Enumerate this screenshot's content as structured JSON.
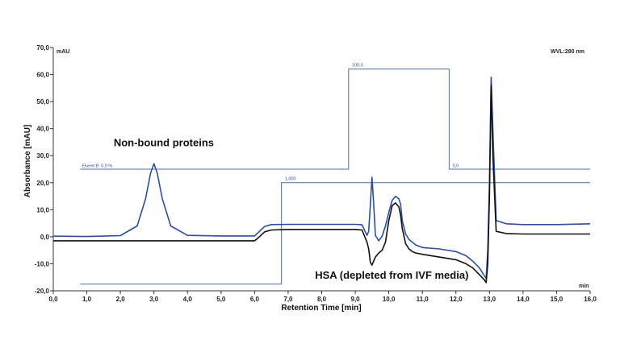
{
  "chart_data": {
    "type": "line",
    "xlabel": "Retention Time [min]",
    "ylabel": "Absorbance [mAU]",
    "x_unit": "min",
    "y_unit": "mAU",
    "wavelength_label": "WVL:280 nm",
    "xlim": [
      0,
      16
    ],
    "ylim": [
      -20,
      70
    ],
    "x_ticks": [
      "0,0",
      "1,0",
      "2,0",
      "3,0",
      "4,0",
      "5,0",
      "6,0",
      "7,0",
      "8,0",
      "9,0",
      "10,0",
      "11,0",
      "12,0",
      "13,0",
      "14,0",
      "15,0",
      "16,0"
    ],
    "x_tick_values": [
      0,
      1,
      2,
      3,
      4,
      5,
      6,
      7,
      8,
      9,
      10,
      11,
      12,
      13,
      14,
      15,
      16
    ],
    "y_ticks": [
      "-20,0",
      "-10,0",
      "0,0",
      "10,0",
      "20,0",
      "30,0",
      "40,0",
      "50,0",
      "60,0",
      "70,0"
    ],
    "y_tick_values": [
      -20,
      -10,
      0,
      10,
      20,
      30,
      40,
      50,
      60,
      70
    ],
    "colors": {
      "blue": "#2a4f9c",
      "black": "#111111",
      "program": "#4a6fa8"
    },
    "series": [
      {
        "color": "blue",
        "x": [
          0.0,
          1.0,
          2.0,
          2.5,
          2.75,
          2.9,
          3.0,
          3.1,
          3.25,
          3.5,
          4.0,
          5.0,
          5.8,
          6.0,
          6.1,
          6.3,
          6.5,
          7.0,
          8.0,
          9.0,
          9.2,
          9.35,
          9.4,
          9.45,
          9.5,
          9.55,
          9.6,
          9.7,
          9.8,
          9.9,
          10.0,
          10.1,
          10.2,
          10.3,
          10.35,
          10.4,
          10.5,
          10.6,
          10.7,
          10.8,
          11.0,
          11.5,
          12.0,
          12.3,
          12.5,
          12.7,
          12.85,
          12.9,
          12.95,
          13.0,
          13.05,
          13.1,
          13.2,
          13.5,
          14.0,
          15.0,
          16.0
        ],
        "y": [
          0.2,
          0.1,
          0.4,
          4.0,
          14.0,
          23.5,
          27.0,
          23.5,
          14.0,
          4.0,
          0.5,
          0.3,
          0.3,
          0.3,
          1.5,
          3.8,
          4.5,
          4.6,
          4.6,
          4.6,
          4.4,
          0.5,
          2.0,
          12.0,
          22.0,
          12.0,
          0.5,
          -1.5,
          0.2,
          4.0,
          9.0,
          13.5,
          15.0,
          14.0,
          12.0,
          6.0,
          1.0,
          -1.0,
          -2.0,
          -3.0,
          -4.0,
          -4.5,
          -5.5,
          -7.0,
          -9.0,
          -11.5,
          -14.5,
          -15.5,
          -5.0,
          20.0,
          59.0,
          40.0,
          6.0,
          4.8,
          4.5,
          4.5,
          4.8
        ]
      },
      {
        "color": "black",
        "x": [
          0.0,
          1.0,
          2.0,
          3.0,
          4.0,
          5.0,
          5.8,
          6.0,
          6.1,
          6.3,
          6.5,
          7.0,
          8.0,
          9.0,
          9.2,
          9.35,
          9.4,
          9.45,
          9.5,
          9.55,
          9.6,
          9.7,
          9.8,
          9.9,
          10.0,
          10.1,
          10.2,
          10.3,
          10.35,
          10.4,
          10.5,
          10.6,
          10.7,
          10.8,
          11.0,
          11.5,
          12.0,
          12.3,
          12.5,
          12.7,
          12.85,
          12.9,
          12.95,
          13.0,
          13.05,
          13.1,
          13.2,
          13.5,
          14.0,
          15.0,
          16.0
        ],
        "y": [
          -1.5,
          -1.5,
          -1.5,
          -1.5,
          -1.5,
          -1.5,
          -1.5,
          -1.5,
          -0.5,
          1.8,
          2.5,
          2.7,
          2.7,
          2.7,
          2.5,
          -2.0,
          -4.5,
          -9.5,
          -10.5,
          -9.0,
          -7.5,
          -6.0,
          -5.0,
          -2.0,
          6.0,
          11.5,
          12.5,
          11.0,
          8.0,
          3.0,
          -2.5,
          -4.5,
          -5.5,
          -6.0,
          -6.5,
          -7.5,
          -8.5,
          -10.0,
          -11.5,
          -14.0,
          -16.0,
          -17.0,
          -10.0,
          15.0,
          56.0,
          30.0,
          2.0,
          1.2,
          1.0,
          1.0,
          1.0
        ]
      }
    ],
    "gradient_program": {
      "x": [
        0.8,
        6.85,
        6.85,
        8.8,
        8.8,
        11.8,
        11.8,
        16.0
      ],
      "y": [
        25.0,
        25.0,
        25.0,
        25.0,
        62.0,
        62.0,
        25.0,
        25.0
      ],
      "start_label": "Eluent B: 0,0 %",
      "high_label": "100,0",
      "end_label": "0,0"
    },
    "valve_program": {
      "x": [
        0.8,
        6.8,
        6.8,
        16.0
      ],
      "y": [
        -17.5,
        -17.5,
        20.0,
        20.0
      ],
      "label": "1,000"
    },
    "annotations": [
      {
        "text": "Non-bound proteins",
        "x": 1.8,
        "y": 33.5
      },
      {
        "text": "HSA (depleted from IVF media)",
        "x": 7.8,
        "y": -15.5
      }
    ]
  }
}
